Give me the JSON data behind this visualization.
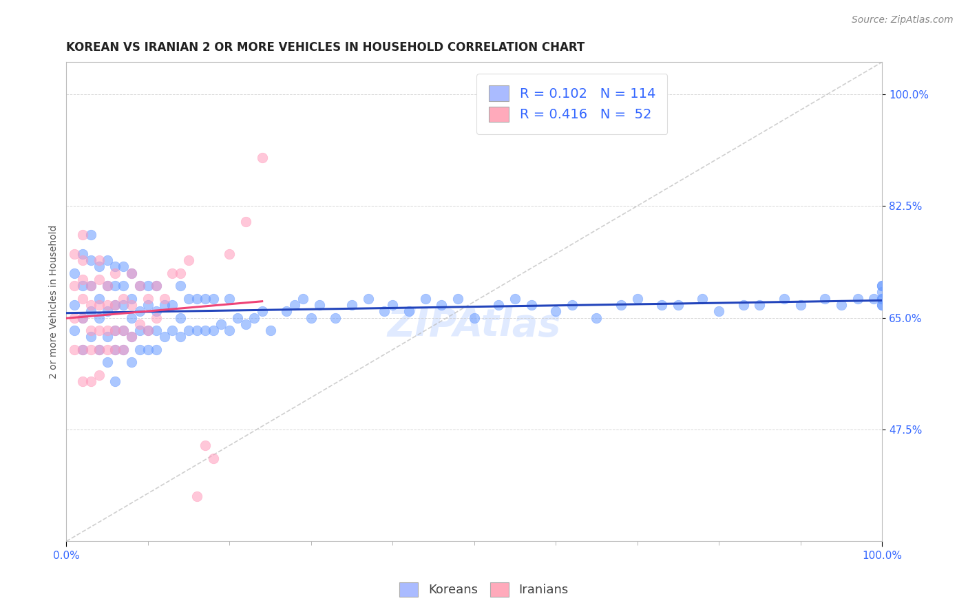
{
  "title": "KOREAN VS IRANIAN 2 OR MORE VEHICLES IN HOUSEHOLD CORRELATION CHART",
  "source_text": "Source: ZipAtlas.com",
  "ylabel": "2 or more Vehicles in Household",
  "xlim": [
    0,
    1.0
  ],
  "ylim": [
    0.3,
    1.05
  ],
  "ytick_labels": [
    "47.5%",
    "65.0%",
    "82.5%",
    "100.0%"
  ],
  "ytick_values": [
    0.475,
    0.65,
    0.825,
    1.0
  ],
  "watermark": "ZIPAtlas",
  "korean_R": "0.102",
  "korean_N": "114",
  "iranian_R": "0.416",
  "iranian_N": "52",
  "korean_color": "#6699ff",
  "iranian_color": "#ff99bb",
  "trendline_korean_color": "#2244bb",
  "trendline_iranian_color": "#ee4477",
  "trendline_ref_color": "#bbbbbb",
  "legend_box_korean": "#aabbff",
  "legend_box_iranian": "#ffaabb",
  "korean_points_x": [
    0.01,
    0.01,
    0.01,
    0.02,
    0.02,
    0.02,
    0.02,
    0.03,
    0.03,
    0.03,
    0.03,
    0.03,
    0.04,
    0.04,
    0.04,
    0.04,
    0.05,
    0.05,
    0.05,
    0.05,
    0.05,
    0.06,
    0.06,
    0.06,
    0.06,
    0.06,
    0.06,
    0.07,
    0.07,
    0.07,
    0.07,
    0.07,
    0.08,
    0.08,
    0.08,
    0.08,
    0.08,
    0.09,
    0.09,
    0.09,
    0.09,
    0.1,
    0.1,
    0.1,
    0.1,
    0.11,
    0.11,
    0.11,
    0.11,
    0.12,
    0.12,
    0.13,
    0.13,
    0.14,
    0.14,
    0.14,
    0.15,
    0.15,
    0.16,
    0.16,
    0.17,
    0.17,
    0.18,
    0.18,
    0.19,
    0.2,
    0.2,
    0.21,
    0.22,
    0.23,
    0.24,
    0.25,
    0.27,
    0.28,
    0.29,
    0.3,
    0.31,
    0.33,
    0.35,
    0.37,
    0.39,
    0.4,
    0.42,
    0.44,
    0.46,
    0.48,
    0.5,
    0.53,
    0.55,
    0.57,
    0.6,
    0.62,
    0.65,
    0.68,
    0.7,
    0.73,
    0.75,
    0.78,
    0.8,
    0.83,
    0.85,
    0.88,
    0.9,
    0.93,
    0.95,
    0.97,
    0.99,
    1.0,
    1.0,
    1.0,
    1.0,
    1.0,
    1.0,
    1.0
  ],
  "korean_points_y": [
    0.63,
    0.67,
    0.72,
    0.6,
    0.65,
    0.7,
    0.75,
    0.62,
    0.66,
    0.7,
    0.74,
    0.78,
    0.6,
    0.65,
    0.68,
    0.73,
    0.58,
    0.62,
    0.66,
    0.7,
    0.74,
    0.55,
    0.6,
    0.63,
    0.67,
    0.7,
    0.73,
    0.6,
    0.63,
    0.67,
    0.7,
    0.73,
    0.58,
    0.62,
    0.65,
    0.68,
    0.72,
    0.6,
    0.63,
    0.66,
    0.7,
    0.6,
    0.63,
    0.67,
    0.7,
    0.6,
    0.63,
    0.66,
    0.7,
    0.62,
    0.67,
    0.63,
    0.67,
    0.62,
    0.65,
    0.7,
    0.63,
    0.68,
    0.63,
    0.68,
    0.63,
    0.68,
    0.63,
    0.68,
    0.64,
    0.63,
    0.68,
    0.65,
    0.64,
    0.65,
    0.66,
    0.63,
    0.66,
    0.67,
    0.68,
    0.65,
    0.67,
    0.65,
    0.67,
    0.68,
    0.66,
    0.67,
    0.66,
    0.68,
    0.67,
    0.68,
    0.65,
    0.67,
    0.68,
    0.67,
    0.66,
    0.67,
    0.65,
    0.67,
    0.68,
    0.67,
    0.67,
    0.68,
    0.66,
    0.67,
    0.67,
    0.68,
    0.67,
    0.68,
    0.67,
    0.68,
    0.68,
    0.68,
    0.67,
    0.68,
    0.7,
    0.67,
    0.69,
    0.7
  ],
  "iranian_points_x": [
    0.01,
    0.01,
    0.01,
    0.01,
    0.02,
    0.02,
    0.02,
    0.02,
    0.02,
    0.02,
    0.02,
    0.03,
    0.03,
    0.03,
    0.03,
    0.03,
    0.04,
    0.04,
    0.04,
    0.04,
    0.04,
    0.04,
    0.05,
    0.05,
    0.05,
    0.05,
    0.06,
    0.06,
    0.06,
    0.06,
    0.07,
    0.07,
    0.07,
    0.08,
    0.08,
    0.08,
    0.09,
    0.09,
    0.1,
    0.1,
    0.11,
    0.11,
    0.12,
    0.13,
    0.14,
    0.15,
    0.16,
    0.17,
    0.18,
    0.2,
    0.22,
    0.24
  ],
  "iranian_points_y": [
    0.6,
    0.65,
    0.7,
    0.75,
    0.55,
    0.6,
    0.65,
    0.68,
    0.71,
    0.74,
    0.78,
    0.55,
    0.6,
    0.63,
    0.67,
    0.7,
    0.56,
    0.6,
    0.63,
    0.67,
    0.71,
    0.74,
    0.6,
    0.63,
    0.67,
    0.7,
    0.6,
    0.63,
    0.67,
    0.72,
    0.6,
    0.63,
    0.68,
    0.62,
    0.67,
    0.72,
    0.64,
    0.7,
    0.63,
    0.68,
    0.65,
    0.7,
    0.68,
    0.72,
    0.72,
    0.74,
    0.37,
    0.45,
    0.43,
    0.75,
    0.8,
    0.9
  ],
  "title_fontsize": 12,
  "axis_label_fontsize": 10,
  "tick_fontsize": 11,
  "legend_fontsize": 14,
  "source_fontsize": 10,
  "watermark_fontsize": 40,
  "background_color": "#ffffff",
  "grid_color": "#cccccc"
}
